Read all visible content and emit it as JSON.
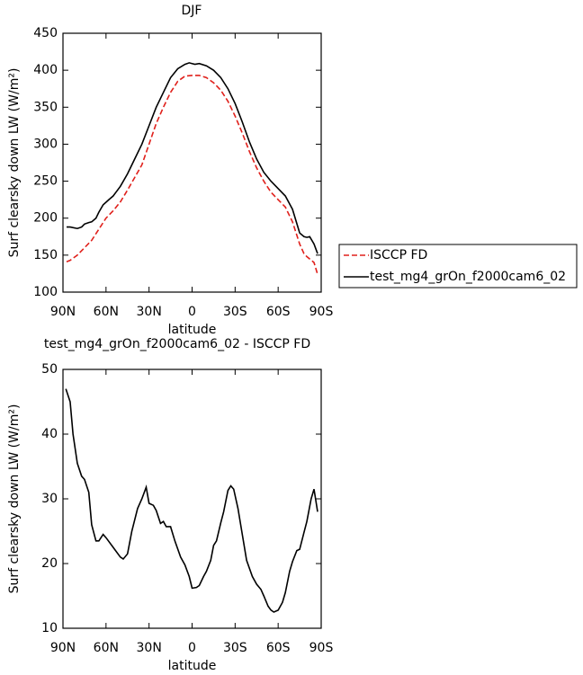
{
  "chart_data": [
    {
      "type": "line",
      "title": "DJF",
      "xlabel": "latitude",
      "ylabel": "Surf clearsky down LW (W/m²)",
      "xlim": [
        90,
        -90
      ],
      "ylim": [
        100,
        450
      ],
      "xticks": [
        {
          "value": 90,
          "label": "90N"
        },
        {
          "value": 60,
          "label": "60N"
        },
        {
          "value": 30,
          "label": "30N"
        },
        0,
        {
          "value": -30,
          "label": "30S"
        },
        {
          "value": -60,
          "label": "60S"
        },
        {
          "value": -90,
          "label": "90S"
        }
      ],
      "yticks": [
        100,
        150,
        200,
        250,
        300,
        350,
        400,
        450
      ],
      "legend": "right",
      "series": [
        {
          "name": "ISCCP FD",
          "color": "#e0201b",
          "dash": true,
          "x": [
            87.5,
            85,
            80,
            75,
            70,
            65,
            60,
            55,
            50,
            45,
            40,
            35,
            30,
            25,
            20,
            15,
            10,
            5,
            0,
            -5,
            -10,
            -15,
            -20,
            -25,
            -30,
            -35,
            -40,
            -45,
            -50,
            -55,
            -60,
            -65,
            -70,
            -75,
            -78,
            -80,
            -85,
            -87.5
          ],
          "values": [
            141,
            143,
            150,
            160,
            170,
            185,
            200,
            210,
            222,
            238,
            255,
            272,
            300,
            328,
            350,
            370,
            385,
            392,
            393,
            393,
            390,
            383,
            373,
            358,
            338,
            315,
            290,
            268,
            250,
            235,
            225,
            215,
            195,
            165,
            152,
            148,
            140,
            124
          ]
        },
        {
          "name": "test_mg4_grOn_f2000cam6_02",
          "color": "#000000",
          "dash": false,
          "x": [
            87.5,
            85,
            80,
            77,
            75,
            72,
            70,
            67,
            65,
            62,
            58,
            55,
            50,
            45,
            40,
            35,
            30,
            25,
            20,
            15,
            10,
            5,
            2,
            0,
            -2,
            -5,
            -10,
            -15,
            -20,
            -25,
            -30,
            -35,
            -40,
            -45,
            -50,
            -55,
            -60,
            -65,
            -70,
            -75,
            -78,
            -80,
            -82,
            -85,
            -87.5
          ],
          "values": [
            188,
            188,
            186,
            188,
            192,
            194,
            195,
            200,
            208,
            218,
            225,
            230,
            243,
            260,
            280,
            300,
            325,
            350,
            370,
            390,
            402,
            408,
            410,
            409,
            408,
            409,
            406,
            400,
            390,
            375,
            355,
            330,
            303,
            280,
            262,
            250,
            240,
            230,
            212,
            180,
            175,
            174,
            175,
            165,
            152
          ]
        }
      ]
    },
    {
      "type": "line",
      "title": "test_mg4_grOn_f2000cam6_02 - ISCCP FD",
      "xlabel": "latitude",
      "ylabel": "Surf clearsky down LW (W/m²)",
      "xlim": [
        90,
        -90
      ],
      "ylim": [
        10,
        50
      ],
      "xticks": [
        {
          "value": 90,
          "label": "90N"
        },
        {
          "value": 60,
          "label": "60N"
        },
        {
          "value": 30,
          "label": "30N"
        },
        0,
        {
          "value": -30,
          "label": "30S"
        },
        {
          "value": -60,
          "label": "60S"
        },
        {
          "value": -90,
          "label": "90S"
        }
      ],
      "yticks": [
        10,
        20,
        30,
        40,
        50
      ],
      "series": [
        {
          "color": "#000000",
          "dash": false,
          "x": [
            88,
            85,
            83,
            80,
            77,
            75,
            72,
            70,
            67,
            65,
            62,
            60,
            55,
            50,
            48,
            45,
            42,
            38,
            35,
            32,
            30,
            27,
            25,
            22,
            20,
            18,
            15,
            12,
            8,
            5,
            2,
            0,
            -3,
            -5,
            -8,
            -10,
            -13,
            -15,
            -17,
            -20,
            -22,
            -25,
            -27,
            -29,
            -32,
            -35,
            -38,
            -42,
            -45,
            -48,
            -50,
            -53,
            -55,
            -57,
            -60,
            -63,
            -65,
            -68,
            -70,
            -73,
            -75,
            -78,
            -80,
            -83,
            -85,
            -87.5
          ],
          "values": [
            47,
            45,
            40,
            35.5,
            33.5,
            33,
            31,
            26,
            23.5,
            23.5,
            24.5,
            24,
            22.5,
            21,
            20.7,
            21.5,
            25,
            28.5,
            30,
            31.8,
            29.3,
            29,
            28.2,
            26.2,
            26.5,
            25.7,
            25.7,
            23.5,
            21,
            19.8,
            18,
            16.2,
            16.3,
            16.6,
            18,
            18.8,
            20.5,
            22.8,
            23.5,
            26.3,
            28,
            31.3,
            32,
            31.5,
            28.5,
            24.5,
            20.5,
            18,
            16.8,
            16,
            15,
            13.4,
            12.8,
            12.5,
            12.8,
            14,
            15.5,
            18.8,
            20.3,
            22,
            22.2,
            24.8,
            26.5,
            30,
            31.5,
            28
          ]
        }
      ]
    }
  ]
}
